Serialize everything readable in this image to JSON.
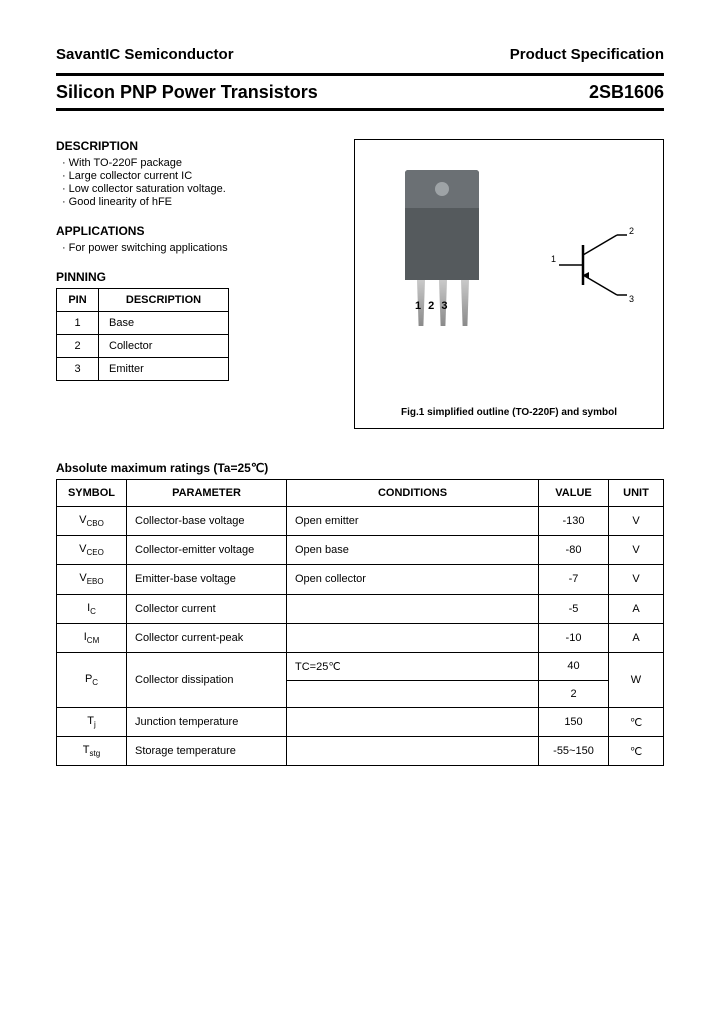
{
  "header": {
    "company": "SavantIC Semiconductor",
    "spec": "Product Specification"
  },
  "title": {
    "left": "Silicon PNP Power Transistors",
    "right": "2SB1606"
  },
  "description": {
    "heading": "DESCRIPTION",
    "items": [
      "With TO-220F package",
      "Large collector current IC",
      "Low collector saturation voltage.",
      "Good linearity of hFE"
    ]
  },
  "applications": {
    "heading": "APPLICATIONS",
    "items": [
      "For power switching applications"
    ]
  },
  "pinning": {
    "heading": "PINNING",
    "columns": [
      "PIN",
      "DESCRIPTION"
    ],
    "rows": [
      {
        "pin": "1",
        "desc": "Base"
      },
      {
        "pin": "2",
        "desc": "Collector"
      },
      {
        "pin": "3",
        "desc": "Emitter"
      }
    ]
  },
  "figure": {
    "pins_label": "1 2 3",
    "caption": "Fig.1 simplified outline (TO-220F) and symbol",
    "symbol_labels": {
      "base": "1",
      "collector": "2",
      "emitter": "3"
    }
  },
  "ratings": {
    "heading": "Absolute maximum ratings (Ta=25℃)",
    "columns": [
      "SYMBOL",
      "PARAMETER",
      "CONDITIONS",
      "VALUE",
      "UNIT"
    ],
    "rows": [
      {
        "sym": "V",
        "sub": "CBO",
        "par": "Collector-base voltage",
        "cond": "Open emitter",
        "val": "-130",
        "unit": "V"
      },
      {
        "sym": "V",
        "sub": "CEO",
        "par": "Collector-emitter voltage",
        "cond": "Open base",
        "val": "-80",
        "unit": "V"
      },
      {
        "sym": "V",
        "sub": "EBO",
        "par": "Emitter-base voltage",
        "cond": "Open collector",
        "val": "-7",
        "unit": "V"
      },
      {
        "sym": "I",
        "sub": "C",
        "par": "Collector current",
        "cond": "",
        "val": "-5",
        "unit": "A"
      },
      {
        "sym": "I",
        "sub": "CM",
        "par": "Collector current-peak",
        "cond": "",
        "val": "-10",
        "unit": "A"
      },
      {
        "sym": "P",
        "sub": "C",
        "par": "Collector dissipation",
        "cond": "TC=25℃",
        "val": "40",
        "unit": "W",
        "rowspan_par": 2,
        "rowspan_unit": 2
      },
      {
        "sym": "",
        "sub": "",
        "par": "",
        "cond": "",
        "val": "2",
        "unit": "",
        "merged": true
      },
      {
        "sym": "T",
        "sub": "j",
        "par": "Junction temperature",
        "cond": "",
        "val": "150",
        "unit": "℃"
      },
      {
        "sym": "T",
        "sub": "stg",
        "par": "Storage temperature",
        "cond": "",
        "val": "-55~150",
        "unit": "℃"
      }
    ]
  },
  "colors": {
    "text": "#000000",
    "rule": "#000000",
    "pkg_body": "#555a5d",
    "pkg_top": "#6b7074"
  }
}
